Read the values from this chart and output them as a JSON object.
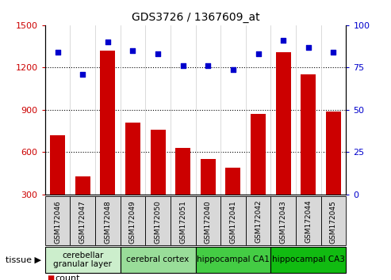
{
  "title": "GDS3726 / 1367609_at",
  "samples": [
    "GSM172046",
    "GSM172047",
    "GSM172048",
    "GSM172049",
    "GSM172050",
    "GSM172051",
    "GSM172040",
    "GSM172041",
    "GSM172042",
    "GSM172043",
    "GSM172044",
    "GSM172045"
  ],
  "counts": [
    720,
    430,
    1320,
    810,
    760,
    630,
    555,
    490,
    870,
    1310,
    1150,
    890
  ],
  "percentiles": [
    84,
    71,
    90,
    85,
    83,
    76,
    76,
    74,
    83,
    91,
    87,
    84
  ],
  "tissue_groups": [
    {
      "label": "cerebellar\ngranular layer",
      "start": 0,
      "end": 3,
      "color": "#cceecc"
    },
    {
      "label": "cerebral cortex",
      "start": 3,
      "end": 6,
      "color": "#99dd99"
    },
    {
      "label": "hippocampal CA1",
      "start": 6,
      "end": 9,
      "color": "#44cc44"
    },
    {
      "label": "hippocampal CA3",
      "start": 9,
      "end": 12,
      "color": "#11bb11"
    }
  ],
  "ylim_left": [
    300,
    1500
  ],
  "ylim_right": [
    0,
    100
  ],
  "yticks_left": [
    300,
    600,
    900,
    1200,
    1500
  ],
  "yticks_right": [
    0,
    25,
    50,
    75,
    100
  ],
  "bar_color": "#cc0000",
  "dot_color": "#0000cc",
  "bg_color": "#ffffff",
  "xticklabel_bg": "#d8d8d8",
  "grid_dotted_at": [
    600,
    900,
    1200
  ]
}
